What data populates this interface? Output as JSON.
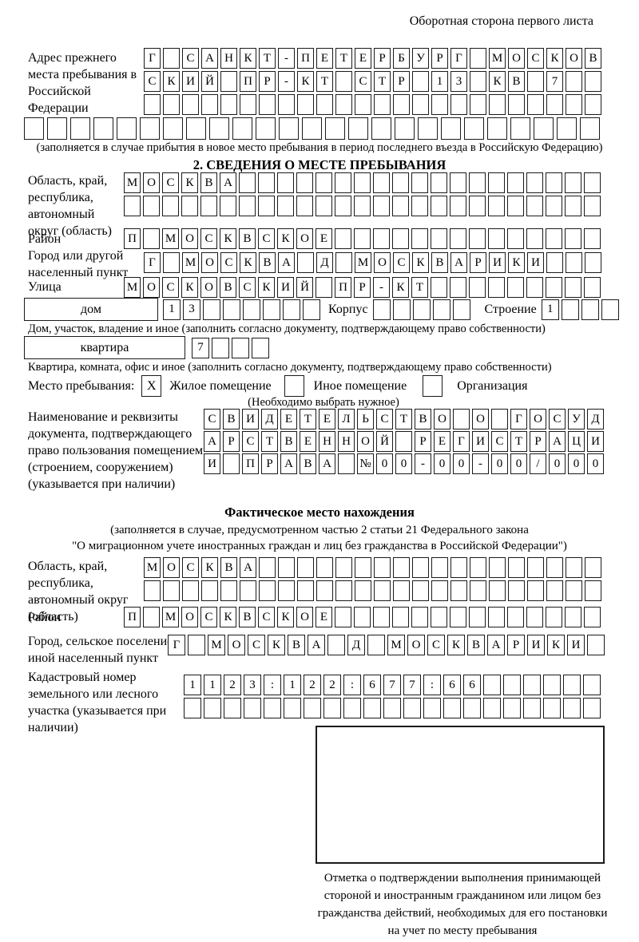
{
  "header": {
    "note": "Оборотная сторона первого листа"
  },
  "prev_address": {
    "label": "Адрес прежнего места пребывания в Российской Федерации",
    "row1": {
      "cells": 24,
      "text": "Г САНКТ-ПЕТЕРБУРГ МОСКОВ"
    },
    "row2": {
      "cells": 24,
      "text": "СКИЙ ПР-КТ СТР 13 КВ 7"
    },
    "row3": {
      "cells": 24,
      "text": ""
    },
    "row4": {
      "cells": 25,
      "text": ""
    },
    "note": "(заполняется в случае прибытия в новое место пребывания в период последнего въезда в Российскую Федерацию)"
  },
  "section2": {
    "title": "2. СВЕДЕНИЯ О МЕСТЕ ПРЕБЫВАНИЯ",
    "region_label": "Область, край, республика, автономный округ (область)",
    "region_row1": {
      "cells": 25,
      "text": "МОСКВА"
    },
    "region_row2": {
      "cells": 25,
      "text": ""
    },
    "district_label": "Район",
    "district_row": {
      "cells": 25,
      "text": "П МОСКВСКОЕ"
    },
    "city_label": "Город или другой населенный пункт",
    "city_row": {
      "cells": 24,
      "text": "Г МОСКВА Д МОСКВАРИКИ"
    },
    "street_label": "Улица",
    "street_row": {
      "cells": 25,
      "text": "МОСКОВСКИЙ ПР-КТ"
    },
    "house_box_label": "дом",
    "house_row": {
      "cells": 8,
      "text": "13"
    },
    "korpus_label": "Корпус",
    "korpus_row": {
      "cells": 5,
      "text": ""
    },
    "stroenie_label": "Строение",
    "stroenie_row": {
      "cells": 4,
      "text": "1"
    },
    "house_note": "Дом, участок, владение и иное (заполнить согласно документу, подтверждающему право собственности)",
    "apartment_box_label": "квартира",
    "apartment_row": {
      "cells": 4,
      "text": "7"
    },
    "apartment_note": "Квартира, комната, офис и иное (заполнить согласно документу, подтверждающему право собственности)",
    "stay_label": "Место пребывания:",
    "stay_options": [
      {
        "label": "Жилое помещение",
        "checked": "X"
      },
      {
        "label": "Иное помещение",
        "checked": ""
      },
      {
        "label": "Организация",
        "checked": ""
      }
    ],
    "stay_note": "(Необходимо выбрать нужное)",
    "document_label": "Наименование и реквизиты документа, подтверждающего право пользования помещением (строением, сооружением) (указывается при наличии)",
    "document_row1": {
      "cells": 21,
      "text": "СВИДЕТЕЛЬСТВО О ГОСУД"
    },
    "document_row2": {
      "cells": 21,
      "text": "АРСТВЕННОЙ РЕГИСТРАЦИ"
    },
    "document_row3": {
      "cells": 21,
      "text": "И ПРАВА №00-00-00/000"
    }
  },
  "actual_location": {
    "title": "Фактическое место нахождения",
    "subtitle_line1": "(заполняется в случае, предусмотренном частью 2 статьи 21 Федерального закона",
    "subtitle_line2": "\"О миграционном учете иностранных граждан и лиц без гражданства в Российской Федерации\")",
    "region_label": "Область, край, республика, автономный округ (область)",
    "region_row1": {
      "cells": 24,
      "text": "МОСКВА"
    },
    "region_row2": {
      "cells": 24,
      "text": ""
    },
    "district_label": "Район",
    "district_row": {
      "cells": 25,
      "text": "П МОСКВСКОЕ"
    },
    "city_label": "Город, сельское поселение, иной населенный пункт",
    "city_row": {
      "cells": 22,
      "text": "Г МОСКВА Д МОСКВАРИКИ"
    },
    "cadastral_label": "Кадастровый номер земельного или лесного участка (указывается при наличии)",
    "cadastral_row1": {
      "cells": 21,
      "text": "1123:122:677:66"
    },
    "cadastral_row2": {
      "cells": 21,
      "text": ""
    },
    "stamp_note": "Отметка о подтверждении выполнения принимающей стороной и иностранным гражданином или лицом без гражданства действий, необходимых для его постановки на учет по месту пребывания"
  },
  "colors": {
    "ink": "#1a1a1a",
    "background": "#ffffff"
  }
}
